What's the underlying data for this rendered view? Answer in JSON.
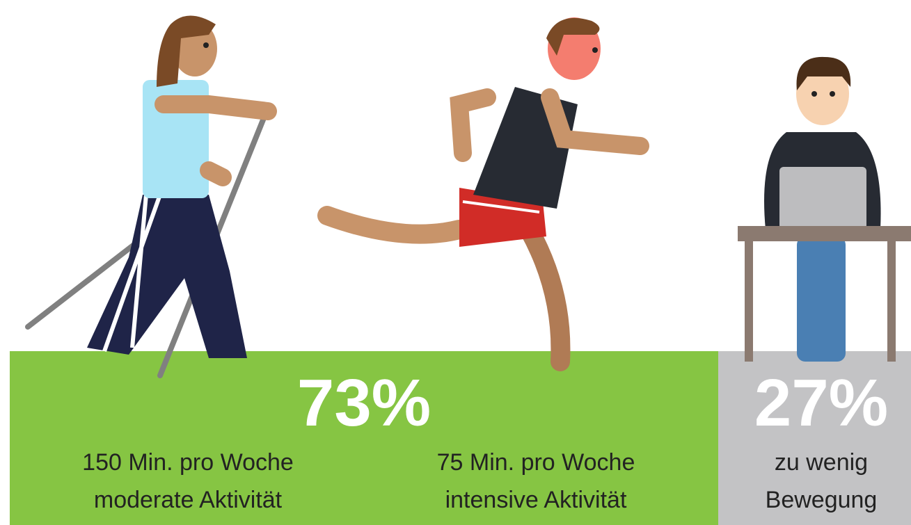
{
  "segments": [
    {
      "percent": "73%",
      "groups": [
        [
          "150 Min. pro Woche",
          "moderate Aktivität"
        ],
        [
          "75 Min. pro Woche",
          "intensive Aktivität"
        ]
      ]
    },
    {
      "percent": "27%",
      "groups": [
        [
          "zu wenig",
          "Bewegung"
        ]
      ]
    }
  ]
}
